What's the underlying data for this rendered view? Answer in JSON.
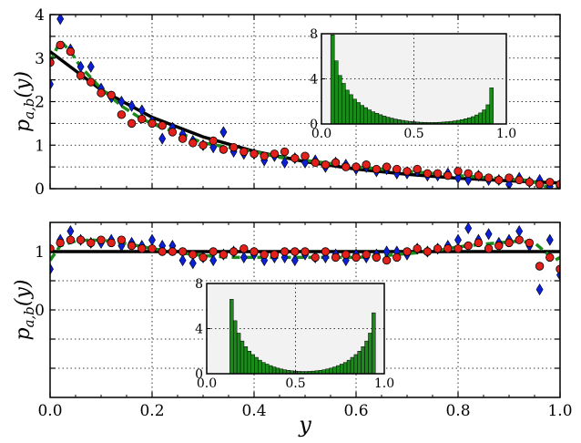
{
  "chart_data": [
    {
      "type": "scatter",
      "ylabel": "p_{a,b}(y)",
      "xlabel": "",
      "xlim": [
        0,
        1
      ],
      "ylim": [
        0,
        4
      ],
      "x_ticks": [
        "0.0",
        "0.2",
        "0.4",
        "0.6",
        "0.8",
        "1.0"
      ],
      "y_ticks": [
        "0",
        "1",
        "2",
        "3",
        "4"
      ],
      "x_tick_labels_visible": false,
      "grid": true,
      "series": [
        {
          "marker": "diamond",
          "color": "#0a1fd6",
          "x": [
            0.0,
            0.02,
            0.04,
            0.06,
            0.08,
            0.1,
            0.12,
            0.14,
            0.16,
            0.18,
            0.2,
            0.22,
            0.24,
            0.26,
            0.28,
            0.3,
            0.32,
            0.34,
            0.36,
            0.38,
            0.4,
            0.42,
            0.44,
            0.46,
            0.48,
            0.5,
            0.52,
            0.54,
            0.56,
            0.58,
            0.6,
            0.62,
            0.64,
            0.66,
            0.68,
            0.7,
            0.72,
            0.74,
            0.76,
            0.78,
            0.8,
            0.82,
            0.84,
            0.86,
            0.88,
            0.9,
            0.92,
            0.94,
            0.96,
            0.98,
            1.0
          ],
          "y": [
            2.4,
            3.9,
            3.2,
            2.8,
            2.8,
            2.3,
            2.1,
            2.0,
            1.9,
            1.8,
            1.55,
            1.15,
            1.4,
            1.25,
            1.1,
            1.0,
            0.95,
            1.3,
            0.85,
            0.8,
            0.8,
            0.65,
            0.75,
            0.6,
            0.7,
            0.6,
            0.65,
            0.5,
            0.6,
            0.55,
            0.45,
            0.5,
            0.4,
            0.45,
            0.35,
            0.35,
            0.4,
            0.3,
            0.3,
            0.35,
            0.25,
            0.2,
            0.3,
            0.2,
            0.2,
            0.1,
            0.25,
            0.15,
            0.2,
            0.05,
            0.1
          ]
        },
        {
          "marker": "circle",
          "color": "#e4201a",
          "x": [
            0.0,
            0.02,
            0.04,
            0.06,
            0.08,
            0.1,
            0.12,
            0.14,
            0.16,
            0.18,
            0.2,
            0.22,
            0.24,
            0.26,
            0.28,
            0.3,
            0.32,
            0.34,
            0.36,
            0.38,
            0.4,
            0.42,
            0.44,
            0.46,
            0.48,
            0.5,
            0.52,
            0.54,
            0.56,
            0.58,
            0.6,
            0.62,
            0.64,
            0.66,
            0.68,
            0.7,
            0.72,
            0.74,
            0.76,
            0.78,
            0.8,
            0.82,
            0.84,
            0.86,
            0.88,
            0.9,
            0.92,
            0.94,
            0.96,
            0.98,
            1.0
          ],
          "y": [
            2.9,
            3.3,
            3.15,
            2.6,
            2.45,
            2.2,
            2.15,
            1.7,
            1.5,
            1.6,
            1.5,
            1.45,
            1.3,
            1.15,
            1.05,
            1.0,
            1.1,
            0.9,
            0.95,
            0.85,
            0.8,
            0.75,
            0.8,
            0.85,
            0.7,
            0.75,
            0.6,
            0.55,
            0.6,
            0.5,
            0.5,
            0.55,
            0.45,
            0.5,
            0.45,
            0.4,
            0.45,
            0.35,
            0.35,
            0.3,
            0.4,
            0.35,
            0.3,
            0.25,
            0.2,
            0.25,
            0.2,
            0.15,
            0.1,
            0.15,
            0.1
          ]
        },
        {
          "name_visible": false,
          "line": "solid",
          "color": "#000000",
          "function": "exponential",
          "x": [
            0.0,
            0.1,
            0.2,
            0.3,
            0.4,
            0.5,
            0.6,
            0.7,
            0.8,
            0.9,
            1.0
          ],
          "y": [
            3.15,
            2.27,
            1.64,
            1.19,
            0.86,
            0.62,
            0.45,
            0.33,
            0.24,
            0.18,
            0.13
          ]
        },
        {
          "line": "dashed",
          "color": "#1b8a1b",
          "x": [
            0.0,
            0.02,
            0.04,
            0.06,
            0.08,
            0.1,
            0.14,
            0.18,
            0.22,
            0.26,
            0.3,
            0.35,
            0.4,
            0.45,
            0.5,
            0.55,
            0.6,
            0.65,
            0.7,
            0.75,
            0.8,
            0.85,
            0.9,
            0.93,
            0.96,
            0.98,
            1.0
          ],
          "y": [
            2.9,
            3.4,
            3.15,
            2.8,
            2.55,
            2.3,
            1.9,
            1.6,
            1.4,
            1.25,
            1.05,
            0.95,
            0.85,
            0.72,
            0.65,
            0.58,
            0.5,
            0.45,
            0.4,
            0.35,
            0.3,
            0.26,
            0.22,
            0.2,
            0.12,
            0.0,
            0.05
          ]
        }
      ],
      "inset": {
        "type": "bar",
        "color": "#1a8a1a",
        "background": "#f2f2f2",
        "xlim": [
          0,
          1
        ],
        "ylim": [
          0,
          8
        ],
        "x_ticks": [
          "0.0",
          "0.5",
          "1.0"
        ],
        "y_ticks": [
          "0",
          "4",
          "8"
        ],
        "bin_start": 0.05,
        "bin_width": 0.02,
        "values": [
          7.9,
          5.6,
          4.3,
          3.6,
          3.0,
          2.6,
          2.2,
          1.9,
          1.65,
          1.45,
          1.25,
          1.08,
          0.95,
          0.82,
          0.7,
          0.6,
          0.52,
          0.44,
          0.38,
          0.32,
          0.27,
          0.23,
          0.2,
          0.17,
          0.15,
          0.14,
          0.13,
          0.13,
          0.14,
          0.15,
          0.17,
          0.2,
          0.23,
          0.27,
          0.32,
          0.38,
          0.46,
          0.55,
          0.65,
          0.8,
          0.98,
          1.25,
          1.7,
          3.2
        ]
      }
    },
    {
      "type": "scatter",
      "ylabel": "p_{a,b}(y)",
      "xlabel": "y",
      "xlim": [
        0,
        1
      ],
      "ylim": [
        -1.5,
        1.5
      ],
      "x_ticks": [
        "0.0",
        "0.2",
        "0.4",
        "0.6",
        "0.8",
        "1.0"
      ],
      "y_ticks": [
        "0",
        "1"
      ],
      "grid": true,
      "series": [
        {
          "marker": "diamond",
          "color": "#0a1fd6",
          "x": [
            0.0,
            0.02,
            0.04,
            0.06,
            0.08,
            0.1,
            0.12,
            0.14,
            0.16,
            0.18,
            0.2,
            0.22,
            0.24,
            0.26,
            0.28,
            0.3,
            0.32,
            0.34,
            0.36,
            0.38,
            0.4,
            0.42,
            0.44,
            0.46,
            0.48,
            0.5,
            0.52,
            0.54,
            0.56,
            0.58,
            0.6,
            0.62,
            0.64,
            0.66,
            0.68,
            0.7,
            0.72,
            0.74,
            0.76,
            0.78,
            0.8,
            0.82,
            0.84,
            0.86,
            0.88,
            0.9,
            0.92,
            0.94,
            0.96,
            0.98,
            1.0
          ],
          "y": [
            0.7,
            1.2,
            1.35,
            1.2,
            1.15,
            1.15,
            1.2,
            1.1,
            1.15,
            1.1,
            1.2,
            1.1,
            1.1,
            0.85,
            0.8,
            0.9,
            0.85,
            0.95,
            1.0,
            0.9,
            0.95,
            0.85,
            0.9,
            0.9,
            0.85,
            0.95,
            0.9,
            0.9,
            0.95,
            0.85,
            0.95,
            0.9,
            0.95,
            1.0,
            1.0,
            0.95,
            1.05,
            1.0,
            1.05,
            1.1,
            1.2,
            1.4,
            1.2,
            1.3,
            1.15,
            1.2,
            1.35,
            1.1,
            0.35,
            1.2,
            0.6
          ]
        },
        {
          "marker": "circle",
          "color": "#e4201a",
          "x": [
            0.0,
            0.02,
            0.04,
            0.06,
            0.08,
            0.1,
            0.12,
            0.14,
            0.16,
            0.18,
            0.2,
            0.22,
            0.24,
            0.26,
            0.28,
            0.3,
            0.32,
            0.34,
            0.36,
            0.38,
            0.4,
            0.42,
            0.44,
            0.46,
            0.48,
            0.5,
            0.52,
            0.54,
            0.56,
            0.58,
            0.6,
            0.62,
            0.64,
            0.66,
            0.68,
            0.7,
            0.72,
            0.74,
            0.76,
            0.78,
            0.8,
            0.82,
            0.84,
            0.86,
            0.88,
            0.9,
            0.92,
            0.94,
            0.96,
            0.98,
            1.0
          ],
          "y": [
            1.05,
            1.15,
            1.2,
            1.2,
            1.15,
            1.2,
            1.15,
            1.2,
            1.1,
            1.05,
            1.05,
            1.0,
            1.0,
            1.0,
            0.95,
            0.9,
            1.0,
            0.95,
            1.0,
            1.05,
            1.0,
            0.95,
            0.95,
            1.0,
            1.0,
            1.0,
            0.9,
            1.0,
            0.9,
            0.95,
            0.9,
            0.95,
            0.9,
            0.85,
            0.9,
            1.0,
            1.05,
            1.0,
            1.05,
            1.05,
            1.05,
            1.1,
            1.15,
            1.05,
            1.1,
            1.15,
            1.2,
            1.15,
            0.75,
            0.9,
            0.7
          ]
        },
        {
          "line": "solid",
          "color": "#000000",
          "function": "constant",
          "x": [
            0.0,
            1.0
          ],
          "y": [
            1.0,
            1.0
          ]
        },
        {
          "line": "dashed",
          "color": "#1b8a1b",
          "x": [
            0.0,
            0.02,
            0.05,
            0.08,
            0.12,
            0.16,
            0.2,
            0.24,
            0.28,
            0.32,
            0.36,
            0.4,
            0.44,
            0.48,
            0.52,
            0.56,
            0.6,
            0.64,
            0.68,
            0.72,
            0.76,
            0.8,
            0.84,
            0.88,
            0.92,
            0.95,
            0.97,
            0.99,
            1.0
          ],
          "y": [
            0.85,
            1.1,
            1.18,
            1.2,
            1.18,
            1.12,
            1.05,
            1.0,
            0.95,
            0.92,
            0.9,
            0.9,
            0.9,
            0.9,
            0.9,
            0.9,
            0.9,
            0.92,
            0.95,
            0.98,
            1.02,
            1.08,
            1.12,
            1.15,
            1.18,
            1.15,
            1.0,
            0.85,
            0.9
          ]
        }
      ],
      "inset": {
        "type": "bar",
        "color": "#1a8a1a",
        "background": "#f2f2f2",
        "xlim": [
          0,
          1
        ],
        "ylim": [
          0,
          8
        ],
        "x_ticks": [
          "0.0",
          "0.5",
          "1.0"
        ],
        "y_ticks": [
          "0",
          "4",
          "8"
        ],
        "bin_start": 0.13,
        "bin_width": 0.02,
        "values": [
          6.6,
          4.7,
          3.6,
          2.9,
          2.4,
          2.0,
          1.7,
          1.45,
          1.2,
          1.0,
          0.85,
          0.72,
          0.6,
          0.5,
          0.42,
          0.35,
          0.3,
          0.26,
          0.23,
          0.21,
          0.2,
          0.2,
          0.21,
          0.23,
          0.26,
          0.3,
          0.35,
          0.42,
          0.5,
          0.6,
          0.72,
          0.85,
          1.0,
          1.2,
          1.45,
          1.7,
          2.0,
          2.4,
          2.9,
          3.6,
          5.4
        ]
      }
    }
  ]
}
